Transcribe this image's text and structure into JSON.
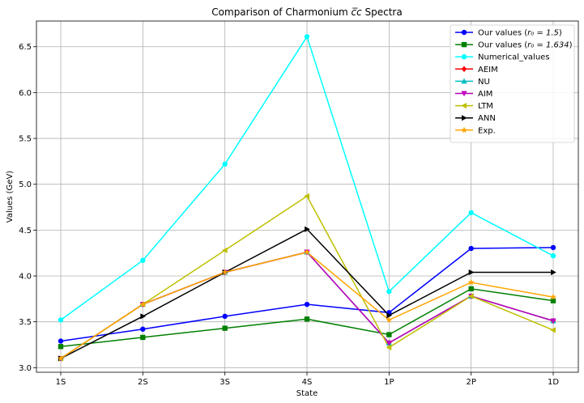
{
  "chart_data": {
    "type": "line",
    "title": "Comparison of Charmonium c̅c Spectra",
    "title_parts": {
      "prefix": "Comparison of Charmonium ",
      "math": "c̅c",
      "suffix": " Spectra"
    },
    "xlabel": "State",
    "ylabel": "Values (GeV)",
    "categories": [
      "1S",
      "2S",
      "3S",
      "4S",
      "1P",
      "2P",
      "1D"
    ],
    "ylim": [
      2.95,
      6.78
    ],
    "yticks": [
      3.0,
      3.5,
      4.0,
      4.5,
      5.0,
      5.5,
      6.0,
      6.5
    ],
    "grid": true,
    "legend_position": "top-right",
    "series": [
      {
        "name": "Our values (r₀ = 1.5)",
        "name_parts": {
          "prefix": "Our values (",
          "math": "r₀ = 1.5",
          "suffix": ")"
        },
        "color": "#0000ff",
        "marker": "circle",
        "values": [
          3.29,
          3.42,
          3.56,
          3.69,
          3.6,
          4.3,
          4.31
        ]
      },
      {
        "name": "Our values (r₀ = 1.634)",
        "name_parts": {
          "prefix": "Our values (",
          "math": "r₀ = 1.634",
          "suffix": ")"
        },
        "color": "#008000",
        "marker": "square",
        "values": [
          3.23,
          3.33,
          3.43,
          3.53,
          3.36,
          3.86,
          3.73
        ]
      },
      {
        "name": "Numerical_values",
        "color": "#00ffff",
        "marker": "circle",
        "values": [
          3.52,
          4.17,
          5.22,
          6.61,
          3.83,
          4.69,
          4.22
        ]
      },
      {
        "name": "AEIM",
        "color": "#ff0000",
        "marker": "diamond",
        "values": [
          3.1,
          3.69,
          4.04,
          4.26,
          3.27,
          3.78,
          3.51
        ]
      },
      {
        "name": "NU",
        "color": "#00bfbf",
        "marker": "triangle-up",
        "values": [
          3.1,
          3.69,
          4.04,
          4.26,
          3.27,
          3.78,
          3.51
        ]
      },
      {
        "name": "AIM",
        "color": "#bf00bf",
        "marker": "triangle-down",
        "values": [
          3.1,
          3.69,
          4.04,
          4.26,
          3.27,
          3.78,
          3.51
        ]
      },
      {
        "name": "LTM",
        "color": "#bfbf00",
        "marker": "triangle-left",
        "values": [
          3.1,
          3.69,
          4.28,
          4.87,
          3.22,
          3.78,
          3.41
        ]
      },
      {
        "name": "ANN",
        "color": "#000000",
        "marker": "triangle-right",
        "values": [
          3.1,
          3.56,
          4.04,
          4.51,
          3.57,
          4.04,
          4.04
        ]
      },
      {
        "name": "Exp.",
        "color": "#ffa500",
        "marker": "star",
        "values": [
          3.1,
          3.69,
          4.04,
          4.26,
          3.52,
          3.93,
          3.77
        ]
      }
    ]
  }
}
